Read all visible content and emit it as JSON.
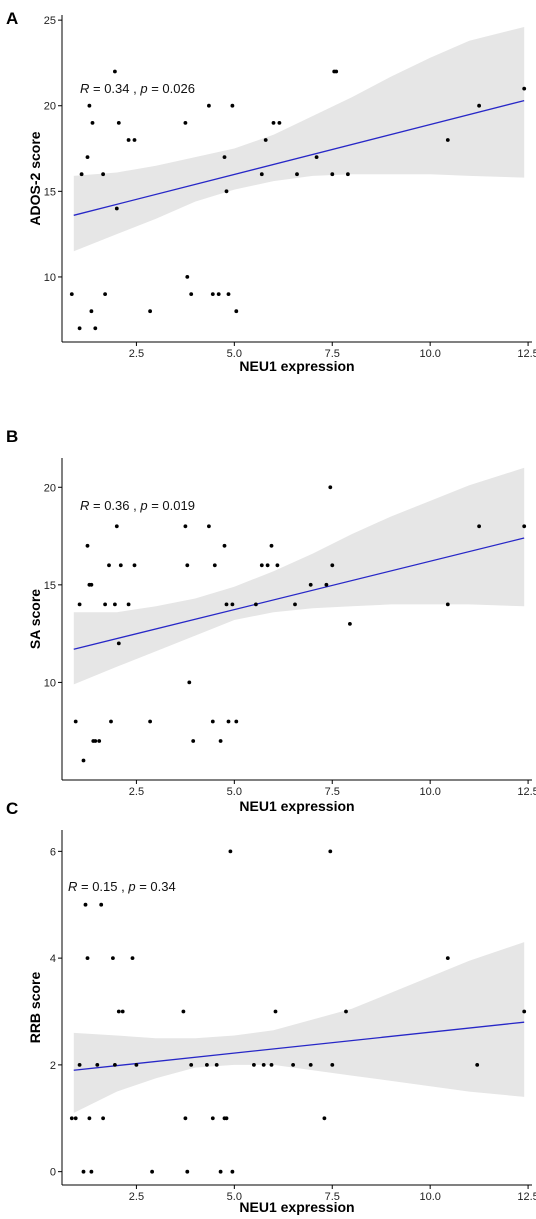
{
  "chart_data": [
    {
      "panel": "A",
      "type": "scatter",
      "xlabel": "NEU1 expression",
      "ylabel": "ADOS-2 score",
      "xticks": [
        "2.5",
        "5.0",
        "7.5",
        "10.0",
        "12.5"
      ],
      "yticks": [
        "10",
        "15",
        "20",
        "25"
      ],
      "xlim": [
        0.6,
        12.6
      ],
      "ylim": [
        6.2,
        25.3
      ],
      "annotation": {
        "r_label": "R",
        "r_text": " = 0.34 , ",
        "p_label": "p",
        "p_text": " = 0.026"
      },
      "points": [
        [
          0.85,
          9
        ],
        [
          1.05,
          7
        ],
        [
          1.1,
          16
        ],
        [
          1.25,
          17
        ],
        [
          1.3,
          20
        ],
        [
          1.35,
          8
        ],
        [
          1.38,
          19
        ],
        [
          1.45,
          7
        ],
        [
          1.65,
          16
        ],
        [
          1.7,
          9
        ],
        [
          1.95,
          22
        ],
        [
          2.0,
          14
        ],
        [
          2.05,
          19
        ],
        [
          2.3,
          18
        ],
        [
          2.45,
          18
        ],
        [
          2.85,
          8
        ],
        [
          3.75,
          19
        ],
        [
          3.8,
          10
        ],
        [
          3.9,
          9
        ],
        [
          4.35,
          20
        ],
        [
          4.45,
          9
        ],
        [
          4.6,
          9
        ],
        [
          4.75,
          17
        ],
        [
          4.8,
          15
        ],
        [
          4.85,
          9
        ],
        [
          4.95,
          20
        ],
        [
          5.05,
          8
        ],
        [
          5.7,
          16
        ],
        [
          5.8,
          18
        ],
        [
          6.0,
          19
        ],
        [
          6.15,
          19
        ],
        [
          6.6,
          16
        ],
        [
          7.1,
          17
        ],
        [
          7.5,
          16
        ],
        [
          7.55,
          22
        ],
        [
          7.6,
          22
        ],
        [
          7.9,
          16
        ],
        [
          10.45,
          18
        ],
        [
          11.25,
          20
        ],
        [
          12.4,
          21
        ]
      ],
      "fit": {
        "x": [
          0.9,
          12.4
        ],
        "y": [
          13.6,
          20.3
        ]
      },
      "ci_band": {
        "x": [
          0.9,
          2.0,
          3.0,
          4.0,
          5.0,
          6.0,
          7.0,
          8.0,
          9.0,
          10.0,
          11.0,
          12.4
        ],
        "lower": [
          11.5,
          12.5,
          13.4,
          14.4,
          15.1,
          15.6,
          15.9,
          16.0,
          16.0,
          16.0,
          15.9,
          15.8
        ],
        "upper": [
          15.9,
          16.1,
          16.5,
          17.0,
          17.5,
          18.3,
          19.4,
          20.5,
          21.7,
          22.8,
          23.8,
          24.6
        ]
      },
      "colors": {
        "fit": "#2727c7",
        "band": "#e6e6e6",
        "point": "#000000"
      }
    },
    {
      "panel": "B",
      "type": "scatter",
      "xlabel": "NEU1 expression",
      "ylabel": "SA score",
      "xticks": [
        "2.5",
        "5.0",
        "7.5",
        "10.0",
        "12.5"
      ],
      "yticks": [
        "10",
        "15",
        "20"
      ],
      "xlim": [
        0.6,
        12.6
      ],
      "ylim": [
        5.0,
        21.5
      ],
      "annotation": {
        "r_label": "R",
        "r_text": " = 0.36 , ",
        "p_label": "p",
        "p_text": " = 0.019"
      },
      "points": [
        [
          0.95,
          8
        ],
        [
          1.05,
          14
        ],
        [
          1.15,
          6
        ],
        [
          1.25,
          17
        ],
        [
          1.3,
          15
        ],
        [
          1.35,
          15
        ],
        [
          1.4,
          7
        ],
        [
          1.45,
          7
        ],
        [
          1.55,
          7
        ],
        [
          1.7,
          14
        ],
        [
          1.8,
          16
        ],
        [
          1.85,
          8
        ],
        [
          1.95,
          14
        ],
        [
          2.0,
          18
        ],
        [
          2.05,
          12
        ],
        [
          2.1,
          16
        ],
        [
          2.3,
          14
        ],
        [
          2.45,
          16
        ],
        [
          2.85,
          8
        ],
        [
          3.75,
          18
        ],
        [
          3.8,
          16
        ],
        [
          3.85,
          10
        ],
        [
          3.95,
          7
        ],
        [
          4.35,
          18
        ],
        [
          4.45,
          8
        ],
        [
          4.5,
          16
        ],
        [
          4.65,
          7
        ],
        [
          4.75,
          17
        ],
        [
          4.8,
          14
        ],
        [
          4.85,
          8
        ],
        [
          4.95,
          14
        ],
        [
          5.05,
          8
        ],
        [
          5.55,
          14
        ],
        [
          5.7,
          16
        ],
        [
          5.85,
          16
        ],
        [
          5.95,
          17
        ],
        [
          6.1,
          16
        ],
        [
          6.55,
          14
        ],
        [
          6.95,
          15
        ],
        [
          7.35,
          15
        ],
        [
          7.45,
          20
        ],
        [
          7.5,
          16
        ],
        [
          7.95,
          13
        ],
        [
          10.45,
          14
        ],
        [
          11.25,
          18
        ],
        [
          12.4,
          18
        ]
      ],
      "fit": {
        "x": [
          0.9,
          12.4
        ],
        "y": [
          11.7,
          17.4
        ]
      },
      "ci_band": {
        "x": [
          0.9,
          2.0,
          3.0,
          4.0,
          5.0,
          6.0,
          7.0,
          8.0,
          9.0,
          10.0,
          11.0,
          12.4
        ],
        "lower": [
          9.9,
          10.8,
          11.6,
          12.4,
          13.2,
          13.6,
          13.8,
          13.9,
          14.0,
          14.0,
          14.0,
          13.9
        ],
        "upper": [
          13.6,
          13.6,
          13.9,
          14.3,
          14.9,
          15.7,
          16.6,
          17.6,
          18.5,
          19.3,
          20.1,
          21.0
        ]
      },
      "colors": {
        "fit": "#2727c7",
        "band": "#e6e6e6",
        "point": "#000000"
      }
    },
    {
      "panel": "C",
      "type": "scatter",
      "xlabel": "NEU1 expression",
      "ylabel": "RRB score",
      "xticks": [
        "2.5",
        "5.0",
        "7.5",
        "10.0",
        "12.5"
      ],
      "yticks": [
        "0",
        "2",
        "4",
        "6"
      ],
      "xlim": [
        0.6,
        12.6
      ],
      "ylim": [
        -0.25,
        6.4
      ],
      "annotation": {
        "r_label": "R",
        "r_text": " = 0.15 , ",
        "p_label": "p",
        "p_text": " = 0.34"
      },
      "points": [
        [
          0.85,
          1
        ],
        [
          0.95,
          1
        ],
        [
          1.05,
          2
        ],
        [
          1.15,
          0
        ],
        [
          1.2,
          5
        ],
        [
          1.25,
          4
        ],
        [
          1.3,
          1
        ],
        [
          1.35,
          0
        ],
        [
          1.5,
          2
        ],
        [
          1.6,
          5
        ],
        [
          1.65,
          1
        ],
        [
          1.9,
          4
        ],
        [
          1.95,
          2
        ],
        [
          2.05,
          3
        ],
        [
          2.15,
          3
        ],
        [
          2.4,
          4
        ],
        [
          2.5,
          2
        ],
        [
          2.9,
          0
        ],
        [
          3.7,
          3
        ],
        [
          3.75,
          1
        ],
        [
          3.8,
          0
        ],
        [
          3.9,
          2
        ],
        [
          4.3,
          2
        ],
        [
          4.45,
          1
        ],
        [
          4.55,
          2
        ],
        [
          4.65,
          0
        ],
        [
          4.75,
          1
        ],
        [
          4.8,
          1
        ],
        [
          4.9,
          6
        ],
        [
          4.95,
          0
        ],
        [
          5.5,
          2
        ],
        [
          5.75,
          2
        ],
        [
          5.95,
          2
        ],
        [
          6.05,
          3
        ],
        [
          6.5,
          2
        ],
        [
          6.95,
          2
        ],
        [
          7.3,
          1
        ],
        [
          7.45,
          6
        ],
        [
          7.5,
          2
        ],
        [
          7.85,
          3
        ],
        [
          10.45,
          4
        ],
        [
          11.2,
          2
        ],
        [
          12.4,
          3
        ]
      ],
      "fit": {
        "x": [
          0.9,
          12.4
        ],
        "y": [
          1.9,
          2.8
        ]
      },
      "ci_band": {
        "x": [
          0.9,
          2.0,
          3.0,
          4.0,
          5.0,
          6.0,
          7.0,
          8.0,
          9.0,
          10.0,
          11.0,
          12.4
        ],
        "lower": [
          1.1,
          1.5,
          1.75,
          1.95,
          2.0,
          2.0,
          1.9,
          1.8,
          1.7,
          1.6,
          1.5,
          1.4
        ],
        "upper": [
          2.6,
          2.55,
          2.5,
          2.5,
          2.55,
          2.65,
          2.85,
          3.05,
          3.35,
          3.65,
          3.95,
          4.3
        ]
      },
      "colors": {
        "fit": "#2727c7",
        "band": "#e6e6e6",
        "point": "#000000"
      }
    }
  ]
}
